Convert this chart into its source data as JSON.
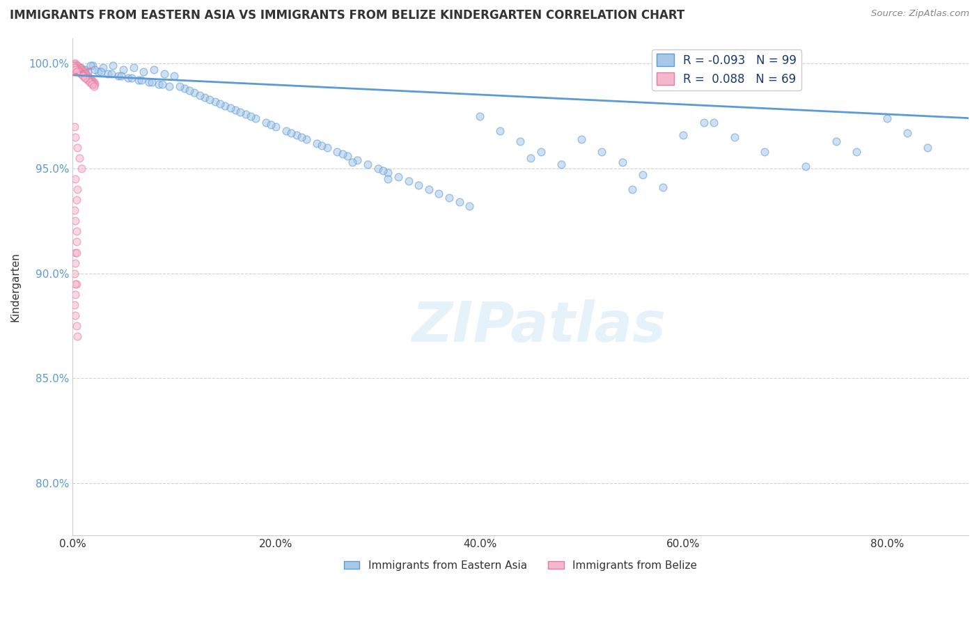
{
  "title": "IMMIGRANTS FROM EASTERN ASIA VS IMMIGRANTS FROM BELIZE KINDERGARTEN CORRELATION CHART",
  "source": "Source: ZipAtlas.com",
  "ylabel": "Kindergarten",
  "watermark": "ZIPatlas",
  "legend_entries": [
    {
      "label": "Immigrants from Eastern Asia",
      "color": "#a8c8e8",
      "edge": "#5b9bd5",
      "R": "-0.093",
      "N": "99"
    },
    {
      "label": "Immigrants from Belize",
      "color": "#f4b8cc",
      "edge": "#e87aa0",
      "R": "0.088",
      "N": "69"
    }
  ],
  "x_tick_labels": [
    "0.0%",
    "20.0%",
    "40.0%",
    "60.0%",
    "80.0%"
  ],
  "y_tick_labels": [
    "80.0%",
    "85.0%",
    "90.0%",
    "95.0%",
    "100.0%"
  ],
  "x_range": [
    0.0,
    0.88
  ],
  "y_range": [
    0.775,
    1.012
  ],
  "blue_scatter_x": [
    0.005,
    0.01,
    0.015,
    0.02,
    0.008,
    0.012,
    0.018,
    0.025,
    0.03,
    0.022,
    0.035,
    0.04,
    0.028,
    0.045,
    0.05,
    0.038,
    0.055,
    0.06,
    0.048,
    0.065,
    0.07,
    0.058,
    0.075,
    0.08,
    0.068,
    0.085,
    0.09,
    0.078,
    0.095,
    0.1,
    0.088,
    0.11,
    0.12,
    0.105,
    0.13,
    0.115,
    0.125,
    0.14,
    0.135,
    0.15,
    0.145,
    0.16,
    0.155,
    0.17,
    0.18,
    0.165,
    0.19,
    0.175,
    0.2,
    0.21,
    0.195,
    0.22,
    0.215,
    0.23,
    0.24,
    0.225,
    0.25,
    0.26,
    0.245,
    0.27,
    0.28,
    0.265,
    0.29,
    0.3,
    0.275,
    0.31,
    0.32,
    0.305,
    0.33,
    0.34,
    0.35,
    0.36,
    0.37,
    0.38,
    0.39,
    0.4,
    0.42,
    0.44,
    0.46,
    0.48,
    0.5,
    0.52,
    0.54,
    0.56,
    0.58,
    0.6,
    0.63,
    0.65,
    0.68,
    0.72,
    0.75,
    0.77,
    0.8,
    0.82,
    0.84,
    0.31,
    0.45,
    0.55,
    0.62
  ],
  "blue_scatter_y": [
    0.998,
    0.997,
    0.996,
    0.999,
    0.998,
    0.997,
    0.999,
    0.996,
    0.998,
    0.997,
    0.995,
    0.999,
    0.996,
    0.994,
    0.997,
    0.995,
    0.993,
    0.998,
    0.994,
    0.992,
    0.996,
    0.993,
    0.991,
    0.997,
    0.992,
    0.99,
    0.995,
    0.991,
    0.989,
    0.994,
    0.99,
    0.988,
    0.986,
    0.989,
    0.984,
    0.987,
    0.985,
    0.982,
    0.983,
    0.98,
    0.981,
    0.978,
    0.979,
    0.976,
    0.974,
    0.977,
    0.972,
    0.975,
    0.97,
    0.968,
    0.971,
    0.966,
    0.967,
    0.964,
    0.962,
    0.965,
    0.96,
    0.958,
    0.961,
    0.956,
    0.954,
    0.957,
    0.952,
    0.95,
    0.953,
    0.948,
    0.946,
    0.949,
    0.944,
    0.942,
    0.94,
    0.938,
    0.936,
    0.934,
    0.932,
    0.975,
    0.968,
    0.963,
    0.958,
    0.952,
    0.964,
    0.958,
    0.953,
    0.947,
    0.941,
    0.966,
    0.972,
    0.965,
    0.958,
    0.951,
    0.963,
    0.958,
    0.974,
    0.967,
    0.96,
    0.945,
    0.955,
    0.94,
    0.972
  ],
  "pink_scatter_x": [
    0.002,
    0.003,
    0.004,
    0.005,
    0.006,
    0.007,
    0.008,
    0.009,
    0.01,
    0.011,
    0.012,
    0.013,
    0.014,
    0.015,
    0.016,
    0.017,
    0.018,
    0.019,
    0.02,
    0.021,
    0.003,
    0.005,
    0.007,
    0.009,
    0.011,
    0.013,
    0.015,
    0.017,
    0.019,
    0.021,
    0.004,
    0.006,
    0.008,
    0.01,
    0.012,
    0.014,
    0.016,
    0.018,
    0.02,
    0.022,
    0.002,
    0.004,
    0.006,
    0.008,
    0.01,
    0.012,
    0.014,
    0.016,
    0.018,
    0.02,
    0.003,
    0.005,
    0.007,
    0.009,
    0.011,
    0.013,
    0.015,
    0.017,
    0.019,
    0.021,
    0.004,
    0.006,
    0.008,
    0.01,
    0.012,
    0.001,
    0.002,
    0.003,
    0.004
  ],
  "pink_scatter_y": [
    1.0,
    0.999,
    0.999,
    0.998,
    0.998,
    0.997,
    0.997,
    0.996,
    0.996,
    0.995,
    0.995,
    0.994,
    0.994,
    0.993,
    0.993,
    0.992,
    0.992,
    0.991,
    0.991,
    0.99,
    1.0,
    0.999,
    0.998,
    0.997,
    0.996,
    0.995,
    0.994,
    0.993,
    0.992,
    0.991,
    0.999,
    0.998,
    0.997,
    0.996,
    0.995,
    0.994,
    0.993,
    0.992,
    0.991,
    0.99,
    0.999,
    0.998,
    0.997,
    0.996,
    0.995,
    0.994,
    0.993,
    0.992,
    0.991,
    0.99,
    0.998,
    0.997,
    0.996,
    0.995,
    0.994,
    0.993,
    0.992,
    0.991,
    0.99,
    0.989,
    0.997,
    0.996,
    0.995,
    0.994,
    0.993,
    0.999,
    0.998,
    0.997,
    0.996
  ],
  "pink_scatter_x_wide": [
    0.002,
    0.003,
    0.005,
    0.007,
    0.009,
    0.003,
    0.005,
    0.004,
    0.002,
    0.003,
    0.004,
    0.004,
    0.003,
    0.003,
    0.002,
    0.004,
    0.003,
    0.002,
    0.003,
    0.004,
    0.005,
    0.003,
    0.004
  ],
  "pink_scatter_y_wide": [
    0.97,
    0.965,
    0.96,
    0.955,
    0.95,
    0.945,
    0.94,
    0.935,
    0.93,
    0.925,
    0.92,
    0.915,
    0.91,
    0.905,
    0.9,
    0.895,
    0.89,
    0.885,
    0.88,
    0.875,
    0.87,
    0.895,
    0.91
  ],
  "blue_line_x": [
    0.0,
    0.88
  ],
  "blue_line_y": [
    0.9945,
    0.974
  ],
  "pink_line_x": [
    0.0,
    0.022
  ],
  "pink_line_y": [
    0.9945,
    0.9985
  ],
  "scatter_alpha": 0.55,
  "scatter_size": 60,
  "blue_edge": "#5b9bd5",
  "pink_edge": "#e87aa0",
  "blue_fill": "#a8c8e8",
  "pink_fill": "#f4b8cc",
  "grid_color": "#cccccc",
  "background_color": "#ffffff",
  "ytick_color": "#5b9bd5"
}
